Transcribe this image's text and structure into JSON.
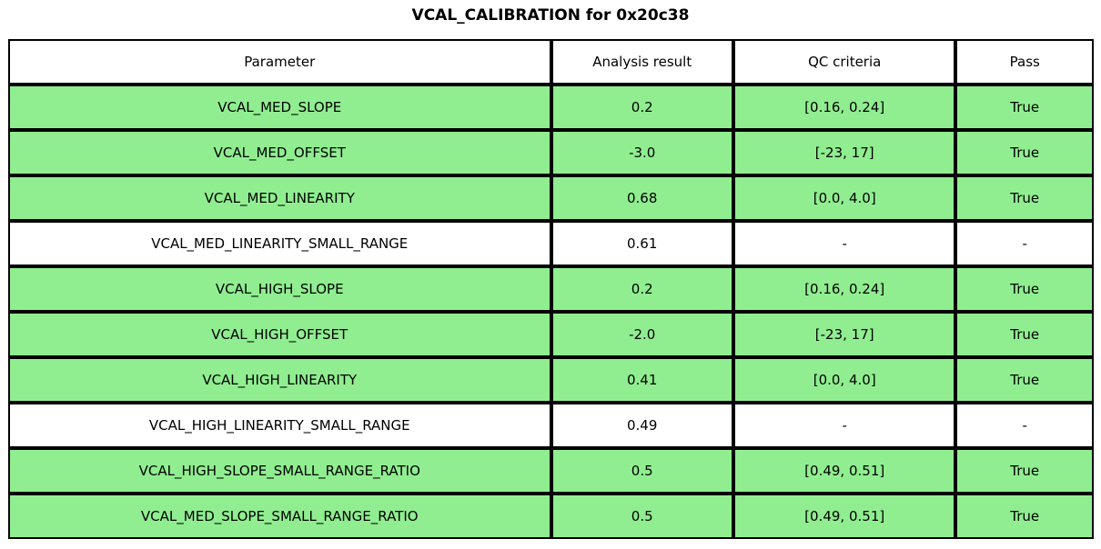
{
  "chart_data": {
    "type": "table",
    "title": "VCAL_CALIBRATION for 0x20c38",
    "columns": [
      "Parameter",
      "Analysis result",
      "QC criteria",
      "Pass"
    ],
    "rows": [
      {
        "parameter": "VCAL_MED_SLOPE",
        "result": "0.2",
        "criteria": "[0.16, 0.24]",
        "pass": "True",
        "status": "pass"
      },
      {
        "parameter": "VCAL_MED_OFFSET",
        "result": "-3.0",
        "criteria": "[-23, 17]",
        "pass": "True",
        "status": "pass"
      },
      {
        "parameter": "VCAL_MED_LINEARITY",
        "result": "0.68",
        "criteria": "[0.0, 4.0]",
        "pass": "True",
        "status": "pass"
      },
      {
        "parameter": "VCAL_MED_LINEARITY_SMALL_RANGE",
        "result": "0.61",
        "criteria": "-",
        "pass": "-",
        "status": "none"
      },
      {
        "parameter": "VCAL_HIGH_SLOPE",
        "result": "0.2",
        "criteria": "[0.16, 0.24]",
        "pass": "True",
        "status": "pass"
      },
      {
        "parameter": "VCAL_HIGH_OFFSET",
        "result": "-2.0",
        "criteria": "[-23, 17]",
        "pass": "True",
        "status": "pass"
      },
      {
        "parameter": "VCAL_HIGH_LINEARITY",
        "result": "0.41",
        "criteria": "[0.0, 4.0]",
        "pass": "True",
        "status": "pass"
      },
      {
        "parameter": "VCAL_HIGH_LINEARITY_SMALL_RANGE",
        "result": "0.49",
        "criteria": "-",
        "pass": "-",
        "status": "none"
      },
      {
        "parameter": "VCAL_HIGH_SLOPE_SMALL_RANGE_RATIO",
        "result": "0.5",
        "criteria": "[0.49, 0.51]",
        "pass": "True",
        "status": "pass"
      },
      {
        "parameter": "VCAL_MED_SLOPE_SMALL_RANGE_RATIO",
        "result": "0.5",
        "criteria": "[0.49, 0.51]",
        "pass": "True",
        "status": "pass"
      }
    ],
    "layout": {
      "title_position": "top-center",
      "grid": "full-cell-borders",
      "legend": "none"
    }
  },
  "colors": {
    "pass_row_bg": "#90EE90",
    "default_row_bg": "#ffffff",
    "border": "#000000",
    "text": "#000000"
  }
}
